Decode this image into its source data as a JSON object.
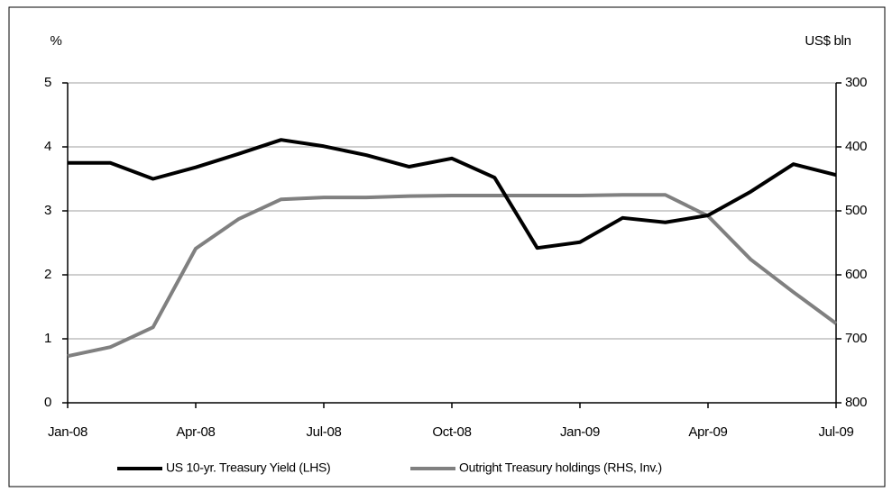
{
  "chart_data": {
    "type": "line",
    "y_label": "%",
    "y2_label": "US$ bln",
    "categories": [
      "Jan-08",
      null,
      null,
      "Apr-08",
      null,
      null,
      "Jul-08",
      null,
      null,
      "Oct-08",
      null,
      null,
      "Jan-09",
      null,
      null,
      "Apr-09",
      null,
      null,
      "Jul-09"
    ],
    "series": [
      {
        "name": "US 10-yr. Treasury Yield (LHS)",
        "color": "#000000",
        "values": [
          3.75,
          3.75,
          3.5,
          3.68,
          3.89,
          4.11,
          4.01,
          3.87,
          3.69,
          3.82,
          3.52,
          2.42,
          2.51,
          2.89,
          2.82,
          2.93,
          3.3,
          3.73,
          3.56
        ]
      },
      {
        "name": "Outright Treasury holdings (RHS, Inv.)",
        "color": "#808080",
        "axis": "y2",
        "values": [
          727,
          713,
          682,
          559,
          513,
          482,
          479,
          479,
          477,
          476,
          476,
          476,
          476,
          475,
          475,
          508,
          576,
          627,
          676
        ]
      }
    ],
    "ylim": [
      0,
      5
    ],
    "yticks": [
      0,
      1,
      2,
      3,
      4,
      5
    ],
    "y2lim": [
      800,
      300
    ],
    "y2ticks": [
      300,
      400,
      500,
      600,
      700,
      800
    ],
    "grid": true
  }
}
